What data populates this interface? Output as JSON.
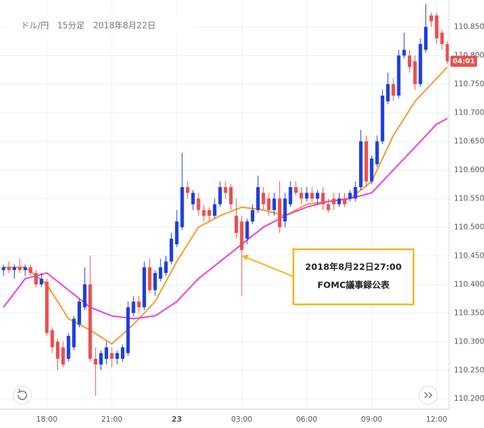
{
  "chart_data": {
    "type": "candlestick",
    "title": "ドル/円　15分足　2018年8月22日",
    "up_color": "#1d3fd8",
    "down_color": "#e8514f",
    "grid": true,
    "xlim": [
      -0.65,
      82.3
    ],
    "ylim": [
      110.182,
      110.897
    ],
    "xticks": [
      {
        "value": 8,
        "label": "18:00"
      },
      {
        "value": 20,
        "label": "21:00"
      },
      {
        "value": 32,
        "label": "23"
      },
      {
        "value": 44,
        "label": "03:00"
      },
      {
        "value": 56,
        "label": "06:00"
      },
      {
        "value": 68,
        "label": "09:00"
      },
      {
        "value": 80,
        "label": "12:00"
      }
    ],
    "yticks": [
      {
        "value": 110.2,
        "label": "110.200"
      },
      {
        "value": 110.25,
        "label": "110.250"
      },
      {
        "value": 110.3,
        "label": "110.300"
      },
      {
        "value": 110.35,
        "label": "110.350"
      },
      {
        "value": 110.4,
        "label": "110.400"
      },
      {
        "value": 110.45,
        "label": "110.450"
      },
      {
        "value": 110.5,
        "label": "110.500"
      },
      {
        "value": 110.55,
        "label": "110.550"
      },
      {
        "value": 110.6,
        "label": "110.600"
      },
      {
        "value": 110.65,
        "label": "110.650"
      },
      {
        "value": 110.7,
        "label": "110.700"
      },
      {
        "value": 110.75,
        "label": "110.750"
      },
      {
        "value": 110.8,
        "label": "110.800"
      },
      {
        "value": 110.85,
        "label": "110.850"
      }
    ],
    "ohlc": [
      [
        110.425,
        110.435,
        110.415,
        110.43
      ],
      [
        110.43,
        110.44,
        110.42,
        110.425
      ],
      [
        110.425,
        110.435,
        110.41,
        110.43
      ],
      [
        110.43,
        110.445,
        110.42,
        110.425
      ],
      [
        110.425,
        110.435,
        110.415,
        110.43
      ],
      [
        110.43,
        110.435,
        110.415,
        110.42
      ],
      [
        110.42,
        110.425,
        110.395,
        110.4
      ],
      [
        110.4,
        110.42,
        110.395,
        110.41
      ],
      [
        110.405,
        110.41,
        110.31,
        110.315
      ],
      [
        110.32,
        110.325,
        110.28,
        110.29
      ],
      [
        110.3,
        110.305,
        110.25,
        110.27
      ],
      [
        110.29,
        110.3,
        110.255,
        110.26
      ],
      [
        110.27,
        110.315,
        110.265,
        110.31
      ],
      [
        110.29,
        110.345,
        110.285,
        110.34
      ],
      [
        110.33,
        110.375,
        110.325,
        110.37
      ],
      [
        110.36,
        110.43,
        110.355,
        110.4
      ],
      [
        110.4,
        110.45,
        110.265,
        110.27
      ],
      [
        110.27,
        110.29,
        110.205,
        110.26
      ],
      [
        110.26,
        110.285,
        110.25,
        110.28
      ],
      [
        110.27,
        110.3,
        110.26,
        110.29
      ],
      [
        110.28,
        110.29,
        110.255,
        110.27
      ],
      [
        110.27,
        110.285,
        110.26,
        110.28
      ],
      [
        110.27,
        110.295,
        110.265,
        110.29
      ],
      [
        110.28,
        110.37,
        110.275,
        110.36
      ],
      [
        110.35,
        110.38,
        110.345,
        110.37
      ],
      [
        110.37,
        110.38,
        110.35,
        110.36
      ],
      [
        110.36,
        110.44,
        110.355,
        110.43
      ],
      [
        110.43,
        110.445,
        110.385,
        110.39
      ],
      [
        110.39,
        110.425,
        110.38,
        110.42
      ],
      [
        110.41,
        110.445,
        110.405,
        110.43
      ],
      [
        110.42,
        110.45,
        110.415,
        110.44
      ],
      [
        110.44,
        110.49,
        110.435,
        110.48
      ],
      [
        110.47,
        110.53,
        110.465,
        110.51
      ],
      [
        110.5,
        110.63,
        110.495,
        110.57
      ],
      [
        110.57,
        110.58,
        110.55,
        110.56
      ],
      [
        110.54,
        110.565,
        110.53,
        110.56
      ],
      [
        110.55,
        110.56,
        110.52,
        110.53
      ],
      [
        110.53,
        110.54,
        110.51,
        110.52
      ],
      [
        110.53,
        110.535,
        110.51,
        110.52
      ],
      [
        110.52,
        110.55,
        110.515,
        110.54
      ],
      [
        110.54,
        110.58,
        110.535,
        110.57
      ],
      [
        110.57,
        110.58,
        110.55,
        110.56
      ],
      [
        110.57,
        110.575,
        110.53,
        110.54
      ],
      [
        110.52,
        110.55,
        110.48,
        110.49
      ],
      [
        110.51,
        110.52,
        110.38,
        110.46
      ],
      [
        110.48,
        110.515,
        110.47,
        110.51
      ],
      [
        110.51,
        110.54,
        110.505,
        110.53
      ],
      [
        110.53,
        110.59,
        110.525,
        110.57
      ],
      [
        110.56,
        110.57,
        110.53,
        110.54
      ],
      [
        110.55,
        110.56,
        110.52,
        110.53
      ],
      [
        110.53,
        110.56,
        110.52,
        110.55
      ],
      [
        110.55,
        110.58,
        110.49,
        110.5
      ],
      [
        110.51,
        110.56,
        110.5,
        110.55
      ],
      [
        110.54,
        110.58,
        110.535,
        110.57
      ],
      [
        110.57,
        110.58,
        110.555,
        110.56
      ],
      [
        110.56,
        110.57,
        110.54,
        110.55
      ],
      [
        110.55,
        110.57,
        110.545,
        110.56
      ],
      [
        110.56,
        110.57,
        110.545,
        110.55
      ],
      [
        110.55,
        110.565,
        110.54,
        110.56
      ],
      [
        110.56,
        110.57,
        110.53,
        110.54
      ],
      [
        110.54,
        110.55,
        110.525,
        110.53
      ],
      [
        110.55,
        110.56,
        110.53,
        110.54
      ],
      [
        110.54,
        110.56,
        110.535,
        110.55
      ],
      [
        110.55,
        110.56,
        110.535,
        110.54
      ],
      [
        110.55,
        110.565,
        110.545,
        110.56
      ],
      [
        110.55,
        110.58,
        110.545,
        110.57
      ],
      [
        110.57,
        110.67,
        110.565,
        110.65
      ],
      [
        110.65,
        110.66,
        110.57,
        110.58
      ],
      [
        110.58,
        110.625,
        110.575,
        110.62
      ],
      [
        110.61,
        110.66,
        110.605,
        110.65
      ],
      [
        110.65,
        110.74,
        110.645,
        110.73
      ],
      [
        110.72,
        110.77,
        110.715,
        110.75
      ],
      [
        110.75,
        110.76,
        110.72,
        110.73
      ],
      [
        110.73,
        110.81,
        110.725,
        110.8
      ],
      [
        110.8,
        110.84,
        110.795,
        110.81
      ],
      [
        110.8,
        110.81,
        110.77,
        110.78
      ],
      [
        110.79,
        110.8,
        110.74,
        110.75
      ],
      [
        110.75,
        110.83,
        110.745,
        110.82
      ],
      [
        110.81,
        110.89,
        110.805,
        110.85
      ],
      [
        110.87,
        110.875,
        110.85,
        110.86
      ],
      [
        110.87,
        110.875,
        110.82,
        110.83
      ],
      [
        110.84,
        110.845,
        110.81,
        110.82
      ],
      [
        110.82,
        110.825,
        110.785,
        110.79
      ]
    ],
    "series": [
      {
        "color": "#f39a2e",
        "x": [
          0,
          4,
          8,
          12,
          16,
          20,
          24,
          28,
          32,
          36,
          40,
          44,
          48,
          52,
          56,
          60,
          64,
          68,
          72,
          76,
          80,
          82
        ],
        "values": [
          110.43,
          110.43,
          110.4,
          110.34,
          110.32,
          110.296,
          110.33,
          110.37,
          110.44,
          110.5,
          110.52,
          110.535,
          110.53,
          110.52,
          110.54,
          110.545,
          110.55,
          110.58,
          110.66,
          110.72,
          110.76,
          110.78
        ]
      },
      {
        "color": "#ee3ddc",
        "x": [
          0,
          4,
          8,
          12,
          16,
          20,
          24,
          28,
          32,
          36,
          40,
          44,
          48,
          52,
          56,
          60,
          64,
          68,
          72,
          76,
          80,
          82
        ],
        "values": [
          110.36,
          110.41,
          110.42,
          110.39,
          110.36,
          110.345,
          110.34,
          110.345,
          110.37,
          110.41,
          110.44,
          110.47,
          110.5,
          110.52,
          110.535,
          110.545,
          110.55,
          110.56,
          110.6,
          110.64,
          110.68,
          110.69
        ]
      }
    ],
    "price_label": "04:01",
    "annotation": {
      "lines": [
        "2018年8月22日27:00",
        "FOMC議事録公表"
      ],
      "target": [
        44,
        110.45
      ]
    }
  }
}
